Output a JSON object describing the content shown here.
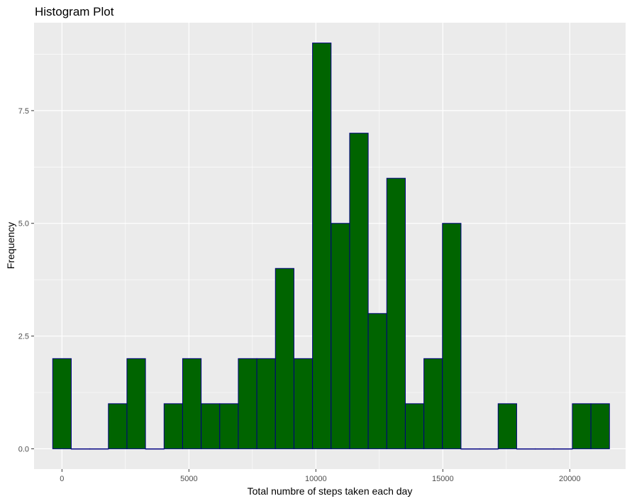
{
  "chart_data": {
    "type": "bar",
    "title": "Histogram Plot",
    "xlabel": "Total numbre of steps taken each day",
    "ylabel": "Frequency",
    "xlim": [
      -1100,
      22200
    ],
    "ylim": [
      -0.45,
      9.45
    ],
    "x_ticks": [
      0,
      5000,
      10000,
      15000,
      20000
    ],
    "x_tick_labels": [
      "0",
      "5000",
      "10000",
      "15000",
      "20000"
    ],
    "y_ticks": [
      0,
      2.5,
      5,
      7.5
    ],
    "y_tick_labels": [
      "0.0",
      "2.5",
      "5.0",
      "7.5"
    ],
    "bin_width": 731,
    "bin_start": -365.5,
    "values": [
      2,
      0,
      0,
      1,
      2,
      0,
      1,
      2,
      1,
      1,
      2,
      2,
      4,
      2,
      9,
      5,
      7,
      3,
      6,
      1,
      2,
      5,
      0,
      0,
      1,
      0,
      0,
      0,
      1,
      1
    ],
    "grid": true,
    "colors": {
      "fill": "#006400",
      "outline": "#000080",
      "panel": "#ebebeb",
      "grid": "#ffffff"
    }
  }
}
